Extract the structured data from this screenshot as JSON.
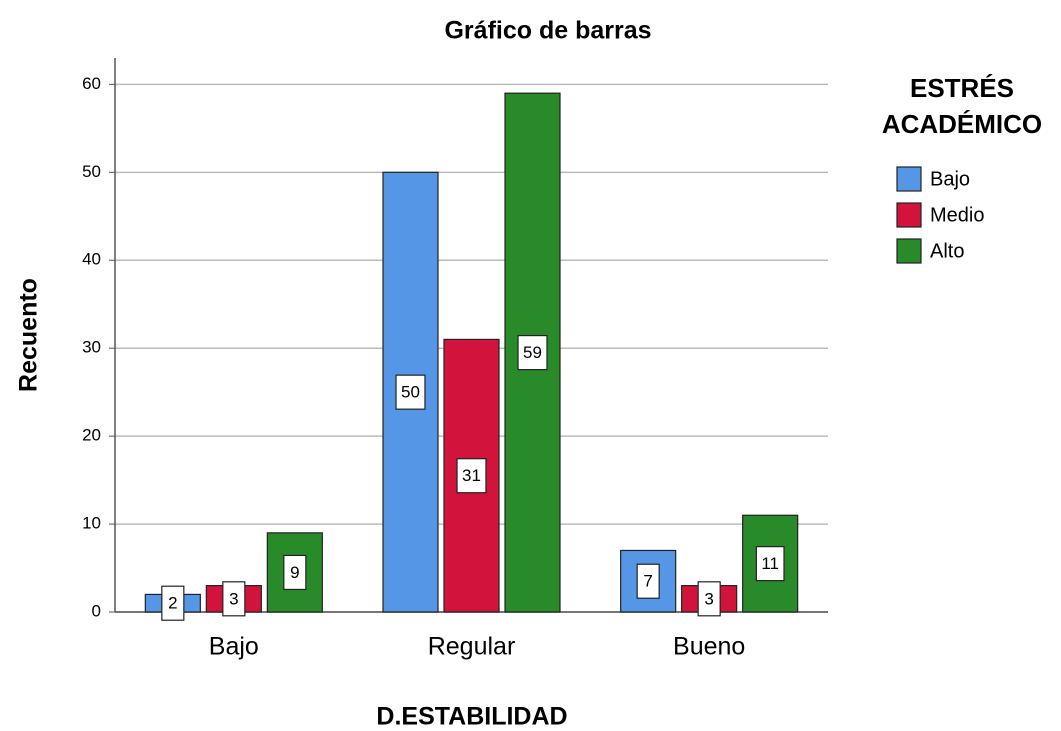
{
  "chart_data": {
    "type": "bar",
    "title": "Gráfico de barras",
    "x_label": "D.ESTABILIDAD",
    "y_label": "Recuento",
    "legend_title": "ESTRÉS ACADÉMICO",
    "categories": [
      "Bajo",
      "Regular",
      "Bueno"
    ],
    "series": [
      {
        "name": "Bajo",
        "color": "#5596e6",
        "values": [
          2,
          50,
          7
        ]
      },
      {
        "name": "Medio",
        "color": "#d2143c",
        "values": [
          3,
          31,
          3
        ]
      },
      {
        "name": "Alto",
        "color": "#298a2a",
        "values": [
          9,
          59,
          11
        ]
      }
    ],
    "ylim": [
      0,
      63
    ],
    "yticks": [
      0,
      10,
      20,
      30,
      40,
      50,
      60
    ],
    "grid": true,
    "legend": "right",
    "data_labels": true
  }
}
